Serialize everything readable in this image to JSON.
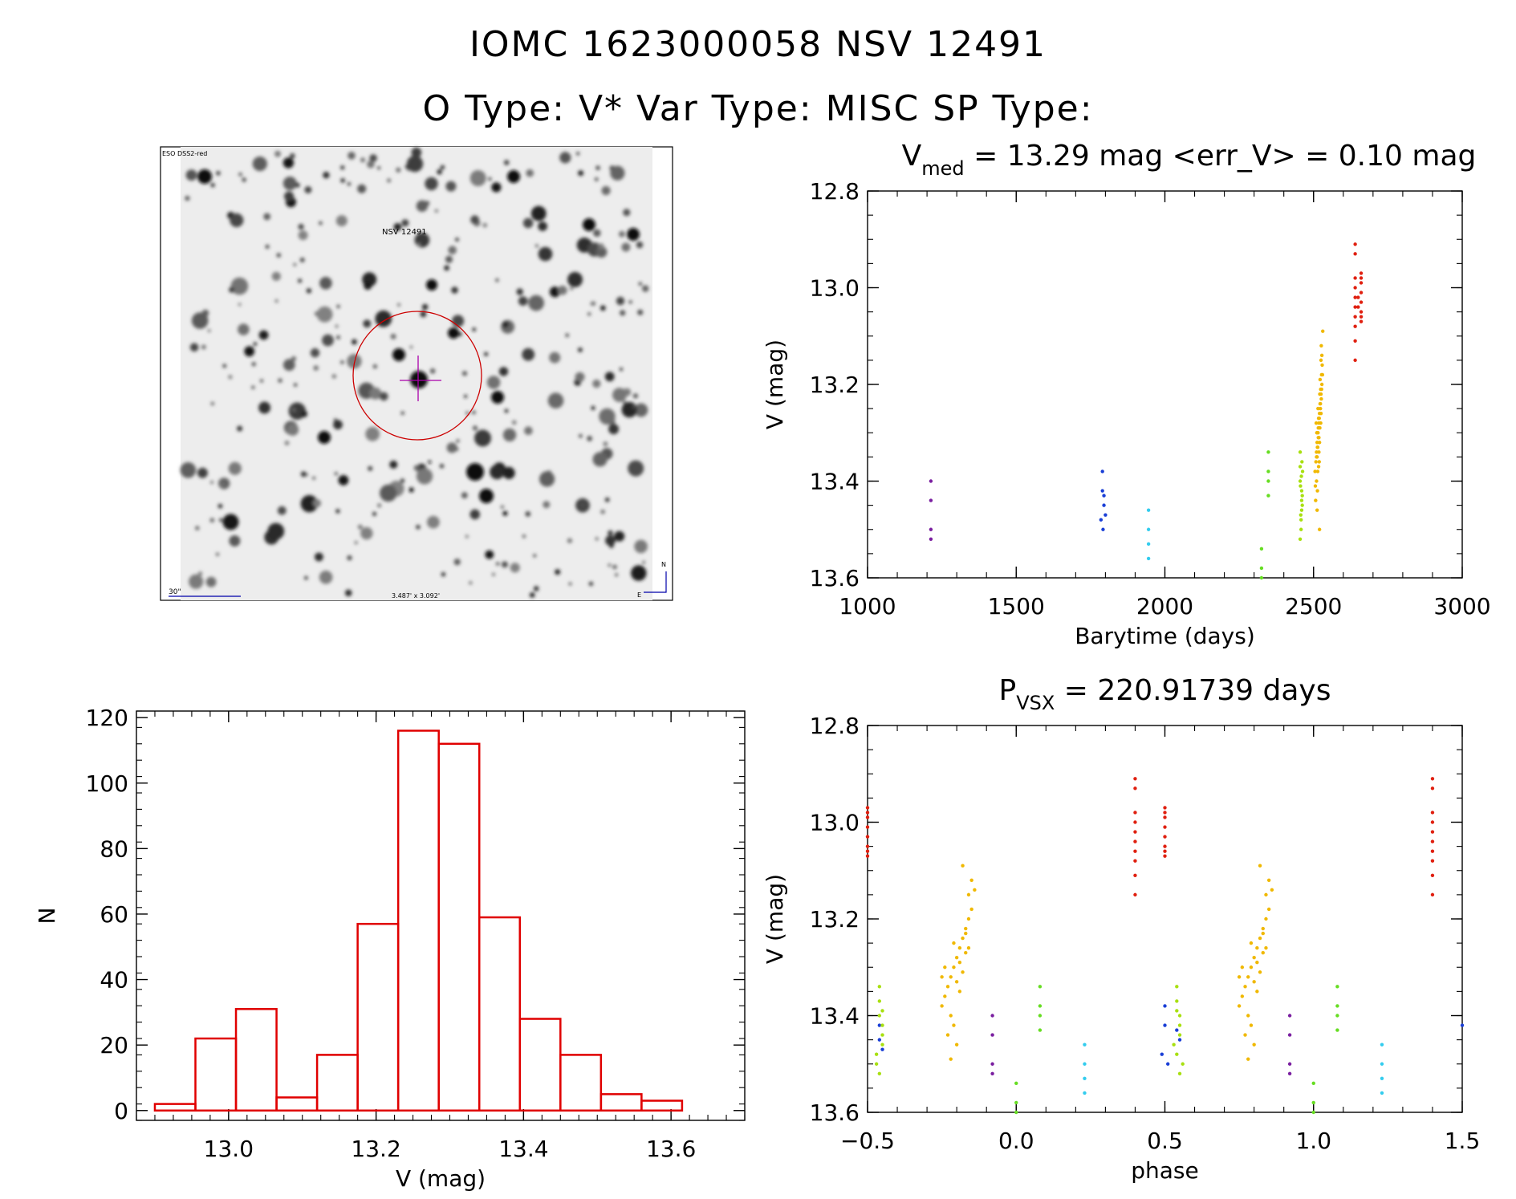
{
  "header": {
    "object_line": "IOMC 1623000058   NSV 12491",
    "type_line": "O Type: V*  Var Type: MISC  SP Type:"
  },
  "finder_image": {
    "target_label": "NSV 12491",
    "survey_label": "ESO DSS2-red",
    "scale_label": "30\"",
    "size_label": "3.487' x 3.092'",
    "north_label": "N",
    "east_label": "E",
    "colors": {
      "target": "#cc0000",
      "crosshair": "#aa00aa",
      "annotation": "#0000aa"
    }
  },
  "chart_data": [
    {
      "id": "lightcurve",
      "type": "scatter",
      "title_main": "V",
      "title_sub": "med",
      "title_rest": " = 13.29 mag <err_V> = 0.10 mag",
      "xlabel": "Barytime (days)",
      "ylabel": "V (mag)",
      "xlim": [
        1000,
        3000
      ],
      "ylim": [
        13.6,
        12.8
      ],
      "xticks": [
        1000,
        1500,
        2000,
        2500,
        3000
      ],
      "xtick_labels": [
        "1000",
        "1500",
        "2000",
        "2500",
        "3000"
      ],
      "yticks": [
        12.8,
        13.0,
        13.2,
        13.4,
        13.6
      ],
      "ytick_labels": [
        "12.8",
        "13.0",
        "13.2",
        "13.4",
        "13.6"
      ],
      "groups": [
        {
          "color": "#7a1fa0",
          "x": [
            1213,
            1213,
            1213,
            1213
          ],
          "y": [
            13.4,
            13.44,
            13.5,
            13.52
          ]
        },
        {
          "color": "#1a3fd6",
          "x": [
            1790,
            1790,
            1795,
            1795,
            1800,
            1785,
            1792
          ],
          "y": [
            13.38,
            13.42,
            13.43,
            13.45,
            13.47,
            13.48,
            13.5
          ]
        },
        {
          "color": "#33ccee",
          "x": [
            1945,
            1945,
            1945,
            1945
          ],
          "y": [
            13.46,
            13.5,
            13.53,
            13.56
          ]
        },
        {
          "color": "#66dd22",
          "x": [
            2325,
            2325,
            2325,
            2348,
            2348,
            2348,
            2348
          ],
          "y": [
            13.54,
            13.58,
            13.6,
            13.34,
            13.38,
            13.4,
            13.43
          ]
        },
        {
          "color": "#a8e010",
          "x": [
            2455,
            2455,
            2455,
            2460,
            2460,
            2460,
            2458,
            2458,
            2462,
            2462,
            2456,
            2459,
            2461,
            2457,
            2463,
            2455
          ],
          "y": [
            13.34,
            13.37,
            13.4,
            13.42,
            13.44,
            13.46,
            13.48,
            13.5,
            13.43,
            13.45,
            13.41,
            13.39,
            13.36,
            13.47,
            13.38,
            13.52
          ]
        },
        {
          "color": "#f0b800",
          "x": [
            2505,
            2508,
            2510,
            2512,
            2515,
            2518,
            2520,
            2522,
            2525,
            2528,
            2530,
            2512,
            2516,
            2519,
            2523,
            2527,
            2514,
            2521,
            2526,
            2510,
            2517,
            2524,
            2529,
            2513,
            2518,
            2522,
            2511,
            2520,
            2525,
            2507,
            2515,
            2528,
            2519,
            2509,
            2526,
            2514,
            2523,
            2516,
            2521,
            2512,
            2527,
            2518,
            2510,
            2524,
            2531,
            2506,
            2517,
            2525,
            2513,
            2520
          ],
          "y": [
            13.38,
            13.36,
            13.34,
            13.32,
            13.3,
            13.28,
            13.26,
            13.24,
            13.22,
            13.2,
            13.18,
            13.35,
            13.31,
            13.27,
            13.25,
            13.21,
            13.33,
            13.29,
            13.23,
            13.4,
            13.37,
            13.28,
            13.16,
            13.42,
            13.34,
            13.19,
            13.3,
            13.32,
            13.26,
            13.44,
            13.25,
            13.14,
            13.36,
            13.28,
            13.12,
            13.38,
            13.24,
            13.29,
            13.22,
            13.46,
            13.18,
            13.31,
            13.35,
            13.21,
            13.09,
            13.41,
            13.27,
            13.15,
            13.33,
            13.5
          ]
        },
        {
          "color": "#e02010",
          "x": [
            2640,
            2640,
            2640,
            2640,
            2640,
            2640,
            2640,
            2640,
            2640,
            2640,
            2660,
            2660,
            2660,
            2660,
            2660,
            2660,
            2660,
            2660,
            2650,
            2650
          ],
          "y": [
            12.91,
            12.93,
            12.98,
            13.0,
            13.02,
            13.04,
            13.06,
            13.08,
            13.11,
            13.15,
            12.97,
            12.99,
            13.01,
            13.03,
            13.05,
            13.06,
            13.07,
            12.98,
            13.02,
            13.04
          ]
        }
      ]
    },
    {
      "id": "phased",
      "type": "scatter",
      "title_main": "P",
      "title_sub": "VSX",
      "title_rest": " = 220.91739 days",
      "xlabel": "phase",
      "ylabel": "V (mag)",
      "xlim": [
        -0.5,
        1.5
      ],
      "ylim": [
        13.6,
        12.8
      ],
      "xticks": [
        -0.5,
        0.0,
        0.5,
        1.0,
        1.5
      ],
      "xtick_labels": [
        "−0.5",
        "0.0",
        "0.5",
        "1.0",
        "1.5"
      ],
      "yticks": [
        12.8,
        13.0,
        13.2,
        13.4,
        13.6
      ],
      "ytick_labels": [
        "12.8",
        "13.0",
        "13.2",
        "13.4",
        "13.6"
      ],
      "groups": [
        {
          "color": "#7a1fa0",
          "x": [
            -0.08,
            -0.08,
            -0.08,
            -0.08,
            0.92,
            0.92,
            0.92,
            0.92
          ],
          "y": [
            13.4,
            13.44,
            13.5,
            13.52,
            13.4,
            13.44,
            13.5,
            13.52
          ]
        },
        {
          "color": "#1a3fd6",
          "x": [
            -0.46,
            -0.46,
            -0.45,
            0.5,
            0.5,
            0.49,
            0.51,
            0.54,
            0.55,
            1.5
          ],
          "y": [
            13.42,
            13.45,
            13.47,
            13.38,
            13.42,
            13.48,
            13.5,
            13.43,
            13.45,
            13.42
          ]
        },
        {
          "color": "#33ccee",
          "x": [
            0.23,
            0.23,
            0.23,
            0.23,
            1.23,
            1.23,
            1.23,
            1.23
          ],
          "y": [
            13.46,
            13.5,
            13.53,
            13.56,
            13.46,
            13.5,
            13.53,
            13.56
          ]
        },
        {
          "color": "#66dd22",
          "x": [
            0.0,
            0.0,
            0.0,
            0.08,
            0.08,
            0.08,
            0.08,
            1.0,
            1.0,
            1.0,
            1.08,
            1.08,
            1.08,
            1.08
          ],
          "y": [
            13.54,
            13.58,
            13.6,
            13.34,
            13.38,
            13.4,
            13.43,
            13.54,
            13.58,
            13.6,
            13.34,
            13.38,
            13.4,
            13.43
          ]
        },
        {
          "color": "#a8e010",
          "x": [
            -0.46,
            -0.46,
            -0.46,
            -0.45,
            -0.45,
            -0.45,
            -0.47,
            -0.47,
            -0.46,
            -0.45,
            0.54,
            0.54,
            0.55,
            0.55,
            0.55,
            0.53,
            0.54,
            0.56,
            0.55,
            0.54
          ],
          "y": [
            13.34,
            13.37,
            13.4,
            13.42,
            13.44,
            13.46,
            13.48,
            13.5,
            13.52,
            13.39,
            13.34,
            13.37,
            13.4,
            13.42,
            13.44,
            13.46,
            13.48,
            13.5,
            13.52,
            13.39
          ]
        },
        {
          "color": "#f0b800",
          "x": [
            -0.25,
            -0.24,
            -0.23,
            -0.22,
            -0.21,
            -0.2,
            -0.19,
            -0.18,
            -0.17,
            -0.16,
            -0.15,
            -0.22,
            -0.2,
            -0.19,
            -0.17,
            -0.16,
            -0.21,
            -0.18,
            -0.15,
            -0.23,
            -0.24,
            -0.19,
            -0.21,
            -0.17,
            -0.18,
            -0.2,
            -0.25,
            -0.16,
            -0.22,
            -0.14,
            0.75,
            0.76,
            0.77,
            0.78,
            0.79,
            0.8,
            0.81,
            0.82,
            0.83,
            0.84,
            0.85,
            0.78,
            0.8,
            0.81,
            0.83,
            0.84,
            0.79,
            0.82,
            0.85,
            0.77,
            0.76,
            0.81,
            0.79,
            0.83,
            0.82,
            0.8,
            0.75,
            0.84,
            0.78,
            0.86
          ],
          "y": [
            13.38,
            13.36,
            13.34,
            13.32,
            13.3,
            13.28,
            13.26,
            13.24,
            13.22,
            13.2,
            13.18,
            13.4,
            13.33,
            13.29,
            13.27,
            13.15,
            13.42,
            13.31,
            13.12,
            13.44,
            13.3,
            13.35,
            13.25,
            13.23,
            13.09,
            13.46,
            13.32,
            13.26,
            13.49,
            13.14,
            13.38,
            13.36,
            13.34,
            13.32,
            13.3,
            13.28,
            13.26,
            13.24,
            13.22,
            13.2,
            13.18,
            13.4,
            13.33,
            13.29,
            13.27,
            13.15,
            13.42,
            13.31,
            13.12,
            13.44,
            13.3,
            13.35,
            13.25,
            13.23,
            13.09,
            13.46,
            13.32,
            13.26,
            13.49,
            13.14
          ]
        },
        {
          "color": "#e02010",
          "x": [
            -0.5,
            -0.5,
            -0.5,
            -0.5,
            -0.5,
            -0.5,
            -0.5,
            -0.5,
            0.4,
            0.4,
            0.4,
            0.4,
            0.4,
            0.4,
            0.4,
            0.4,
            0.4,
            0.4,
            0.5,
            0.5,
            0.5,
            0.5,
            0.5,
            0.5,
            0.5,
            0.5,
            1.4,
            1.4,
            1.4,
            1.4,
            1.4,
            1.4,
            1.4,
            1.4,
            1.4,
            1.4
          ],
          "y": [
            12.97,
            12.99,
            13.01,
            13.03,
            13.05,
            13.06,
            13.07,
            12.98,
            12.91,
            12.93,
            12.98,
            13.0,
            13.02,
            13.04,
            13.06,
            13.08,
            13.11,
            13.15,
            12.97,
            12.99,
            13.01,
            13.03,
            13.05,
            13.06,
            13.07,
            12.98,
            12.91,
            12.93,
            12.98,
            13.0,
            13.02,
            13.04,
            13.06,
            13.08,
            13.11,
            13.15
          ]
        }
      ]
    },
    {
      "id": "histogram",
      "type": "bar",
      "xlabel": "V (mag)",
      "ylabel": "N",
      "xlim": [
        12.875,
        13.7
      ],
      "ylim": [
        -3,
        122
      ],
      "xticks": [
        13.0,
        13.2,
        13.4,
        13.6
      ],
      "xtick_labels": [
        "13.0",
        "13.2",
        "13.4",
        "13.6"
      ],
      "yticks": [
        0,
        20,
        40,
        60,
        80,
        100,
        120
      ],
      "ytick_labels": [
        "0",
        "20",
        "40",
        "60",
        "80",
        "100",
        "120"
      ],
      "bin_edges": [
        12.9,
        12.955,
        13.01,
        13.065,
        13.12,
        13.175,
        13.23,
        13.285,
        13.34,
        13.395,
        13.45,
        13.505,
        13.56,
        13.615
      ],
      "counts": [
        2,
        22,
        31,
        4,
        17,
        57,
        116,
        112,
        59,
        28,
        17,
        5,
        3
      ],
      "bar_color": "#e00000"
    }
  ]
}
